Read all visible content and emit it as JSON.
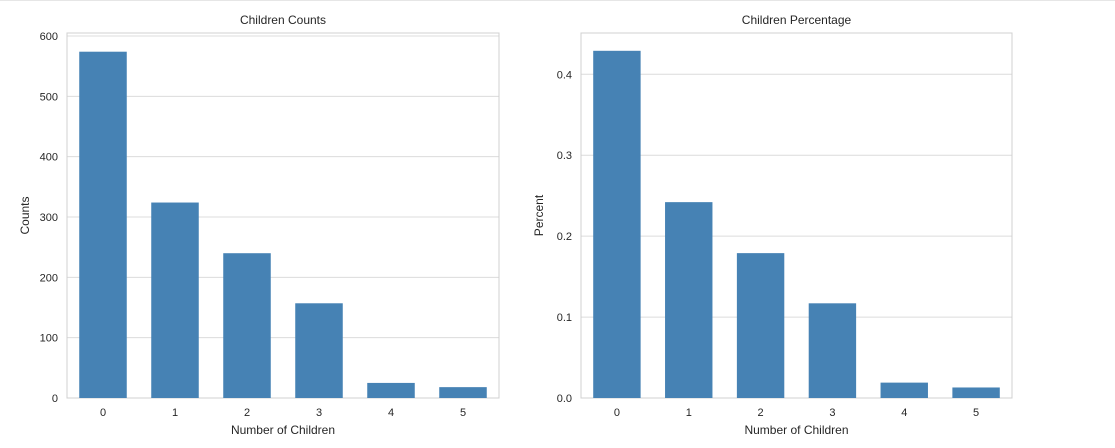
{
  "chart_data": [
    {
      "type": "bar",
      "title": "Children Counts",
      "xlabel": "Number of Children",
      "ylabel": "Counts",
      "categories": [
        "0",
        "1",
        "2",
        "3",
        "4",
        "5"
      ],
      "values": [
        574,
        324,
        240,
        157,
        25,
        18
      ],
      "ylim": [
        0,
        605
      ],
      "yticks": [
        0,
        100,
        200,
        300,
        400,
        500,
        600
      ],
      "ytick_labels": [
        "0",
        "100",
        "200",
        "300",
        "400",
        "500",
        "600"
      ],
      "grid": "y",
      "color": "#4682b4"
    },
    {
      "type": "bar",
      "title": "Children Percentage",
      "xlabel": "Number of Children",
      "ylabel": "Percent",
      "categories": [
        "0",
        "1",
        "2",
        "3",
        "4",
        "5"
      ],
      "values": [
        0.429,
        0.242,
        0.179,
        0.117,
        0.019,
        0.013
      ],
      "ylim": [
        0,
        0.451
      ],
      "yticks": [
        0.0,
        0.1,
        0.2,
        0.3,
        0.4
      ],
      "ytick_labels": [
        "0.0",
        "0.1",
        "0.2",
        "0.3",
        "0.4"
      ],
      "grid": "y",
      "color": "#4682b4"
    }
  ]
}
